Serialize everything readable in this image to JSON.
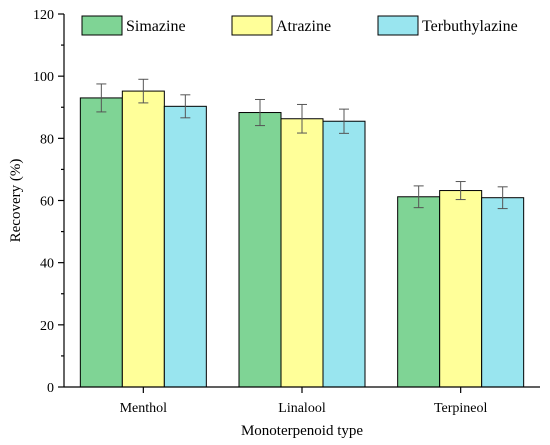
{
  "chart_data": {
    "type": "bar",
    "title": "",
    "xlabel": "Monoterpenoid type",
    "ylabel": "Recovery (%)",
    "categories": [
      "Menthol",
      "Linalool",
      "Terpineol"
    ],
    "ylim": [
      0,
      120
    ],
    "yticks": [
      0,
      20,
      40,
      60,
      80,
      100,
      120
    ],
    "grid": false,
    "legend_position": "top",
    "series": [
      {
        "name": "Simazine",
        "color": "#7fd495",
        "values": [
          93,
          88.3,
          61.2
        ],
        "errors": [
          4.5,
          4.2,
          3.5
        ]
      },
      {
        "name": "Atrazine",
        "color": "#ffff99",
        "values": [
          95.2,
          86.3,
          63.2
        ],
        "errors": [
          3.8,
          4.6,
          2.9
        ]
      },
      {
        "name": "Terbuthylazine",
        "color": "#99e5ef",
        "values": [
          90.3,
          85.5,
          60.9
        ],
        "errors": [
          3.7,
          3.9,
          3.5
        ]
      }
    ]
  }
}
